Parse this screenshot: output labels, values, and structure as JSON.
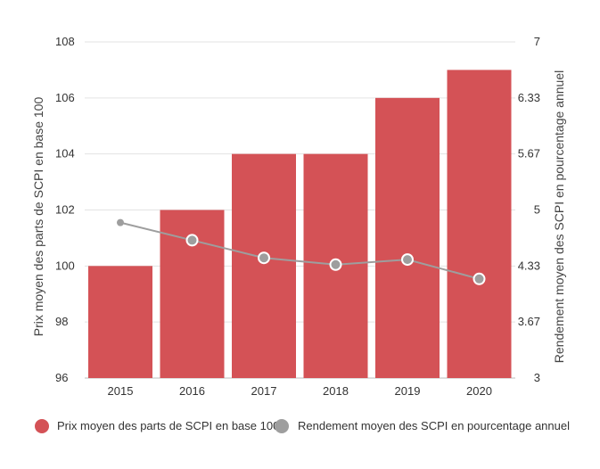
{
  "chart_data": {
    "type": "bar",
    "categories": [
      "2015",
      "2016",
      "2017",
      "2018",
      "2019",
      "2020"
    ],
    "series": [
      {
        "name": "Prix moyen des parts de SCPI en base 100",
        "type": "bar",
        "axis": "left",
        "values": [
          100,
          102,
          104,
          104,
          106,
          107
        ],
        "color": "#d45256"
      },
      {
        "name": "Rendement moyen des SCPI en pourcentage annuel",
        "type": "line",
        "axis": "right",
        "values": [
          4.85,
          4.64,
          4.43,
          4.35,
          4.41,
          4.18
        ],
        "color": "#9e9e9e"
      }
    ],
    "y_left": {
      "label": "Prix moyen des parts de SCPI en base 100",
      "range": [
        96,
        108
      ],
      "ticks": [
        "96",
        "98",
        "100",
        "102",
        "104",
        "106",
        "108"
      ]
    },
    "y_right": {
      "label": "Rendement moyen des SCPI en pourcentage annuel",
      "range": [
        3,
        7
      ],
      "ticks": [
        "3",
        "3.67",
        "4.33",
        "5",
        "5.67",
        "6.33",
        "7"
      ]
    },
    "grid": true,
    "legend": "bottom"
  }
}
